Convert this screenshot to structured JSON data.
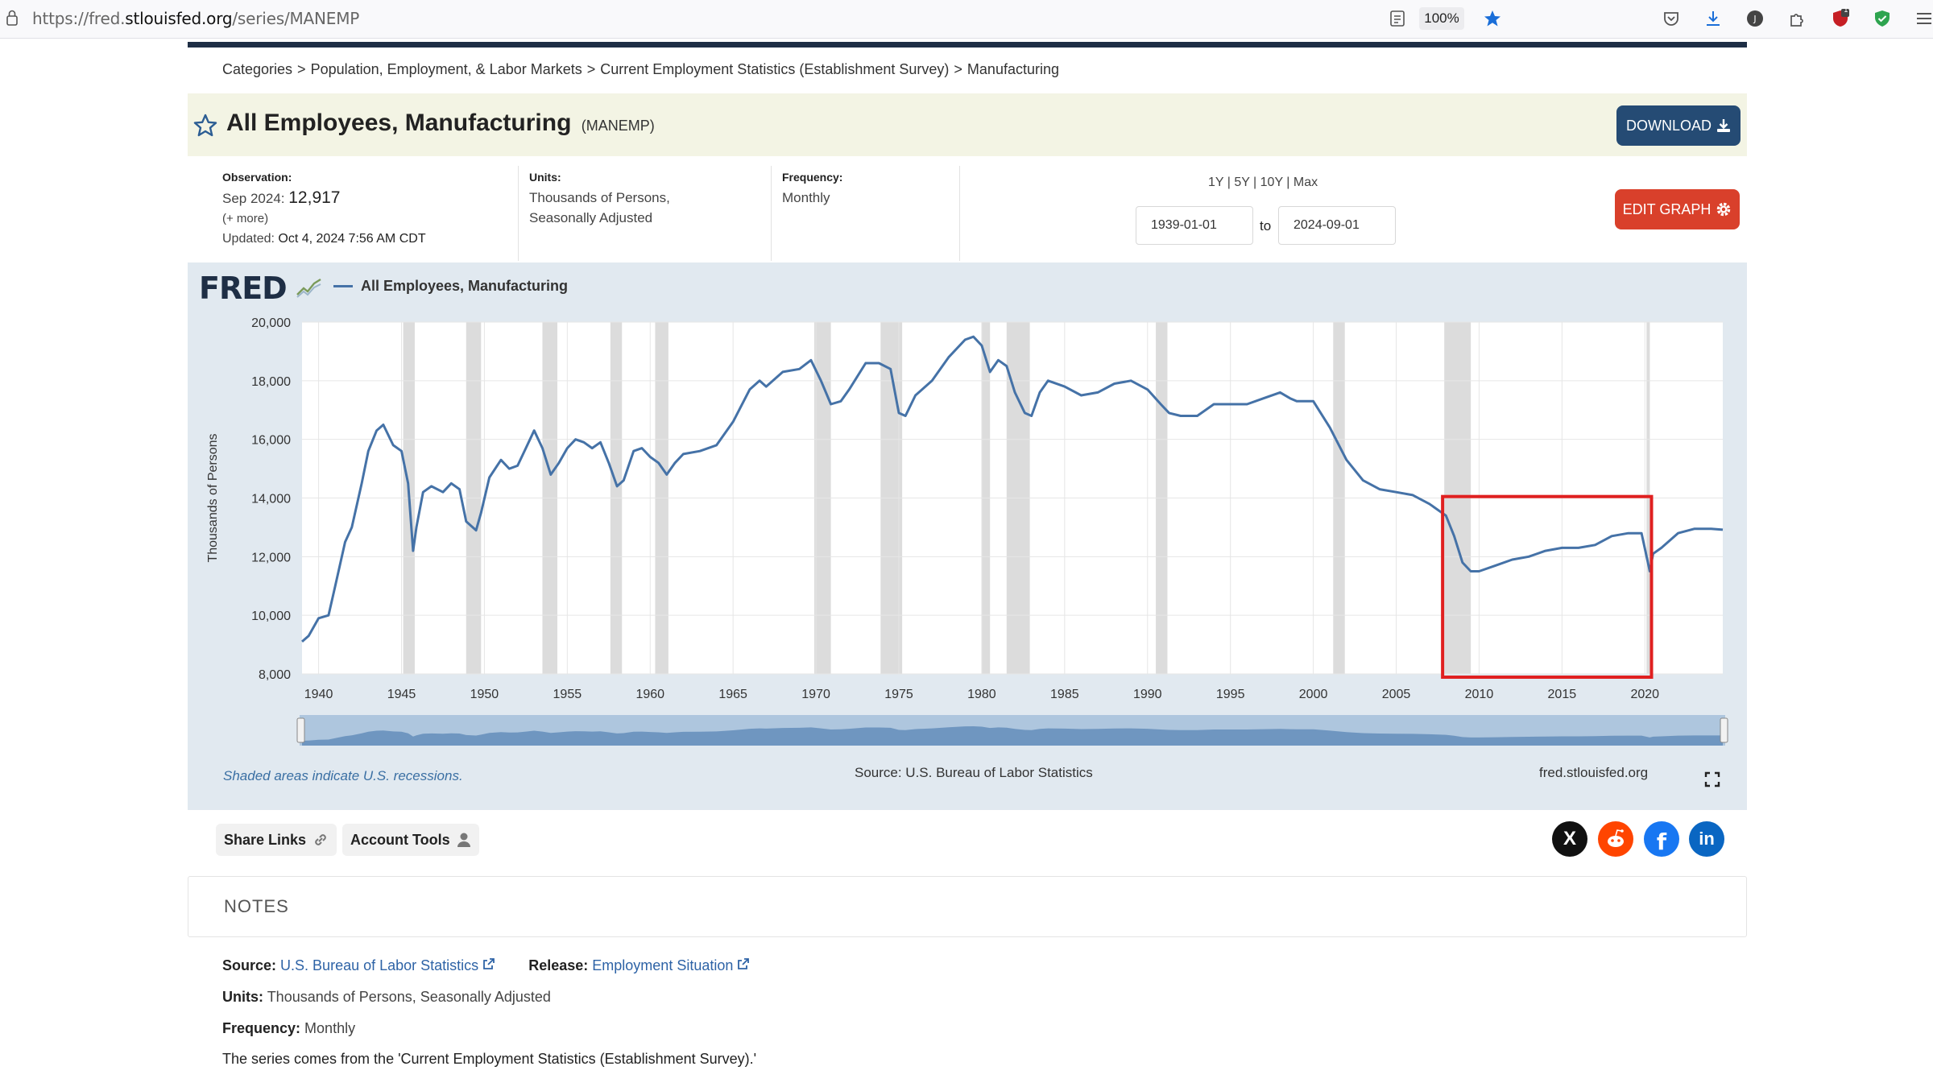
{
  "browser": {
    "url_prefix": "https://fred.",
    "url_host": "stlouisfed.org",
    "url_path": "/series/MANEMP",
    "zoom": "100%",
    "notification_badge": "1"
  },
  "breadcrumb": [
    "Categories",
    "Population, Employment, & Labor Markets",
    "Current Employment Statistics (Establishment Survey)",
    "Manufacturing"
  ],
  "breadcrumb_sep": ">",
  "header": {
    "title": "All Employees, Manufacturing",
    "series_id": "(MANEMP)",
    "download_label": "DOWNLOAD"
  },
  "meta": {
    "observation_label": "Observation:",
    "observation_date": "Sep 2024:",
    "observation_value": "12,917",
    "more_label": "(+ more)",
    "updated_label": "Updated:",
    "updated_value": "Oct 4, 2024 7:56 AM CDT",
    "units_label": "Units:",
    "units_line1": "Thousands of Persons,",
    "units_line2": "Seasonally Adjusted",
    "frequency_label": "Frequency:",
    "frequency_value": "Monthly"
  },
  "range": {
    "links": [
      "1Y",
      "5Y",
      "10Y",
      "Max"
    ],
    "start": "1939-01-01",
    "to_label": "to",
    "end": "2024-09-01",
    "edit_label": "EDIT GRAPH"
  },
  "chart": {
    "logo": "FRED",
    "recession_note": "Shaded areas indicate U.S. recessions.",
    "source": "Source: U.S. Bureau of Labor Statistics",
    "site": "fred.stlouisfed.org"
  },
  "chart_data": {
    "type": "line",
    "ylabel": "Thousands of Persons",
    "ylim": [
      8000,
      20000
    ],
    "xlim": [
      1939,
      2024.7
    ],
    "y_ticks": [
      "8,000",
      "10,000",
      "12,000",
      "14,000",
      "16,000",
      "18,000",
      "20,000"
    ],
    "x_ticks": [
      "1940",
      "1945",
      "1950",
      "1955",
      "1960",
      "1965",
      "1970",
      "1975",
      "1980",
      "1985",
      "1990",
      "1995",
      "2000",
      "2005",
      "2010",
      "2015",
      "2020"
    ],
    "grid": true,
    "series": [
      {
        "name": "All Employees, Manufacturing",
        "color": "#4572a7",
        "x": [
          1939.0,
          1939.4,
          1940.0,
          1940.6,
          1941.0,
          1941.6,
          1942.0,
          1942.6,
          1943.0,
          1943.5,
          1943.9,
          1944.5,
          1945.0,
          1945.4,
          1945.7,
          1945.9,
          1946.3,
          1946.8,
          1947.5,
          1948.0,
          1948.5,
          1948.9,
          1949.5,
          1949.8,
          1950.3,
          1951.0,
          1951.5,
          1952.0,
          1952.5,
          1953.0,
          1953.5,
          1954.0,
          1954.5,
          1955.0,
          1955.5,
          1956.0,
          1956.5,
          1957.0,
          1957.5,
          1958.0,
          1958.4,
          1959.0,
          1959.5,
          1960.0,
          1960.5,
          1961.0,
          1961.5,
          1962.0,
          1963.0,
          1964.0,
          1965.0,
          1966.0,
          1966.6,
          1967.0,
          1968.0,
          1969.0,
          1969.7,
          1970.3,
          1970.9,
          1971.5,
          1972.0,
          1973.0,
          1973.8,
          1974.5,
          1975.0,
          1975.4,
          1976.0,
          1977.0,
          1978.0,
          1979.0,
          1979.5,
          1980.0,
          1980.5,
          1981.0,
          1981.5,
          1982.0,
          1982.6,
          1983.0,
          1983.5,
          1984.0,
          1985.0,
          1986.0,
          1987.0,
          1988.0,
          1989.0,
          1990.0,
          1990.8,
          1991.3,
          1992.0,
          1993.0,
          1994.0,
          1995.0,
          1996.0,
          1997.0,
          1998.0,
          1998.6,
          1999.0,
          2000.0,
          2001.0,
          2002.0,
          2003.0,
          2004.0,
          2005.0,
          2006.0,
          2007.0,
          2008.0,
          2008.5,
          2009.0,
          2009.5,
          2010.0,
          2011.0,
          2012.0,
          2013.0,
          2014.0,
          2015.0,
          2016.0,
          2017.0,
          2018.0,
          2019.0,
          2019.8,
          2020.3,
          2020.5,
          2021.0,
          2022.0,
          2023.0,
          2024.0,
          2024.7
        ],
        "values": [
          9100,
          9300,
          9900,
          10000,
          11000,
          12500,
          13000,
          14500,
          15600,
          16300,
          16500,
          15800,
          15600,
          14500,
          12200,
          13000,
          14200,
          14400,
          14200,
          14500,
          14300,
          13200,
          12900,
          13500,
          14700,
          15300,
          15000,
          15100,
          15700,
          16300,
          15700,
          14800,
          15200,
          15700,
          16000,
          15900,
          15700,
          15900,
          15200,
          14400,
          14600,
          15600,
          15700,
          15400,
          15200,
          14800,
          15200,
          15500,
          15600,
          15800,
          16600,
          17700,
          18000,
          17800,
          18300,
          18400,
          18700,
          18000,
          17200,
          17300,
          17700,
          18600,
          18600,
          18400,
          16900,
          16800,
          17500,
          18000,
          18800,
          19400,
          19500,
          19200,
          18300,
          18700,
          18500,
          17600,
          16900,
          16800,
          17600,
          18000,
          17800,
          17500,
          17600,
          17900,
          18000,
          17700,
          17200,
          16900,
          16800,
          16800,
          17200,
          17200,
          17200,
          17400,
          17600,
          17400,
          17300,
          17300,
          16400,
          15300,
          14600,
          14300,
          14200,
          14100,
          13800,
          13400,
          12700,
          11800,
          11500,
          11500,
          11700,
          11900,
          12000,
          12200,
          12300,
          12300,
          12400,
          12700,
          12800,
          12800,
          11500,
          12100,
          12300,
          12800,
          12950,
          12950,
          12917
        ]
      }
    ]
  },
  "share": {
    "share_links_label": "Share Links",
    "account_tools_label": "Account Tools"
  },
  "social": [
    "X",
    "reddit",
    "facebook",
    "in"
  ],
  "notes": {
    "title": "NOTES",
    "source_label": "Source:",
    "source_value": "U.S. Bureau of Labor Statistics",
    "release_label": "Release:",
    "release_value": "Employment Situation",
    "units_label": "Units:",
    "units_value": "Thousands of Persons, Seasonally Adjusted",
    "frequency_label": "Frequency:",
    "frequency_value": "Monthly",
    "description": "The series comes from the 'Current Employment Statistics (Establishment Survey).'"
  },
  "colors": {
    "line": "#4572a7",
    "recession": "#dcdcdc",
    "highlight_box": "#e02020",
    "download_button": "#254b74",
    "edit_button": "#d9402b"
  }
}
